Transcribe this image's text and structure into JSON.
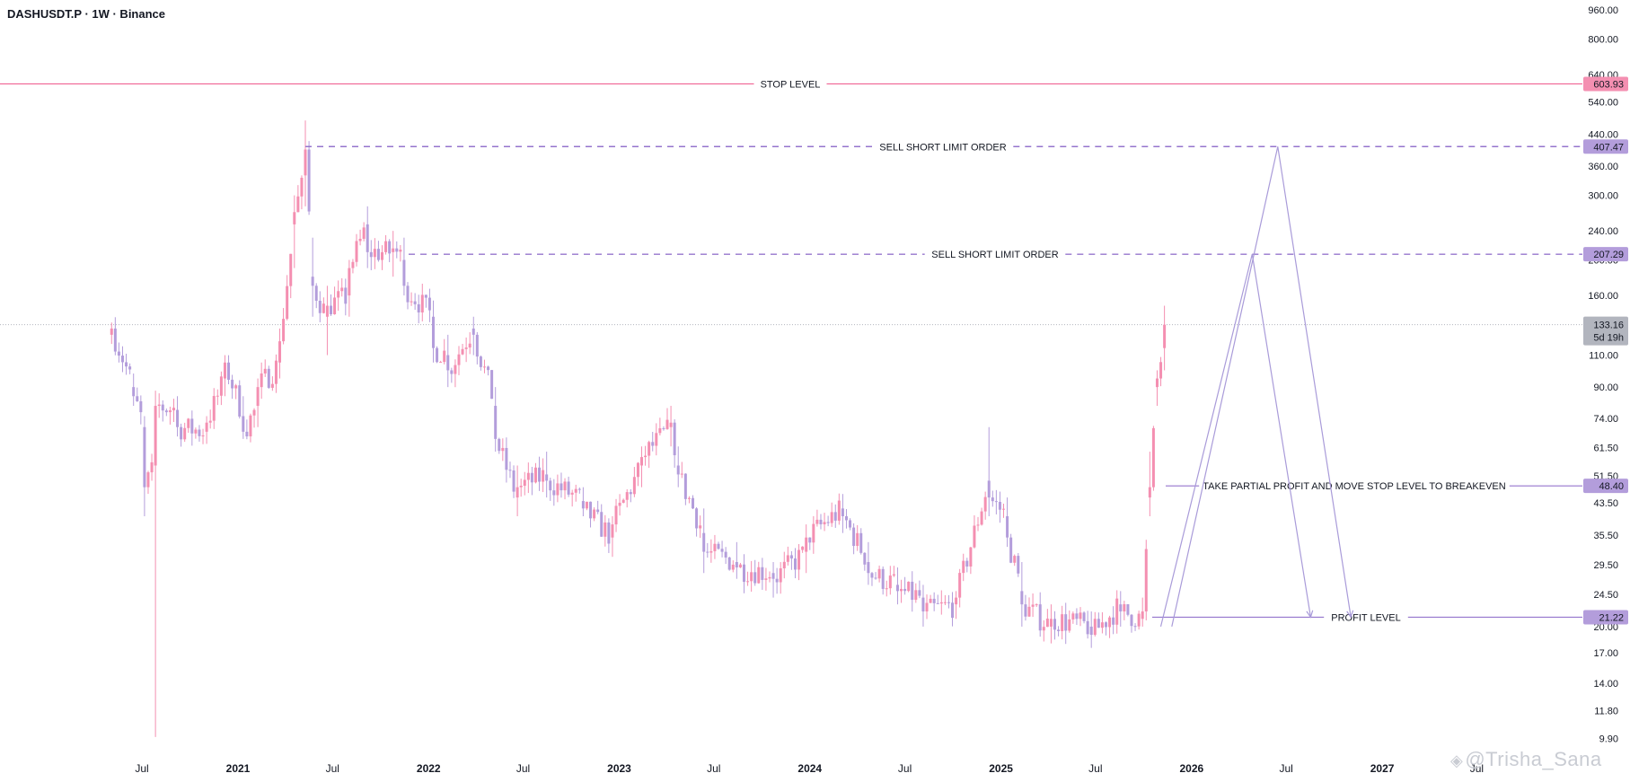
{
  "header": {
    "symbol_title": "DASHUSDT.P · 1W · Binance"
  },
  "watermark": {
    "text": "@Trisha_Sana",
    "icon": "binance-square-icon"
  },
  "colors": {
    "bull_candle": "#f48fb1",
    "bear_candle": "#b39ddb",
    "stop_line": "#f06292",
    "stop_badge_bg": "#f48fb1",
    "order_line": "#9575cd",
    "order_badge_bg": "#b39ddb",
    "current_badge_bg": "#b2b5be",
    "axis_text": "#131722",
    "projection": "#a99bd9"
  },
  "chart_data": {
    "type": "candlestick",
    "title": "",
    "scale": "log",
    "x_axis": {
      "tick_labels": [
        "Jul",
        "2021",
        "Jul",
        "2022",
        "Jul",
        "2023",
        "Jul",
        "2024",
        "Jul",
        "2025",
        "Jul",
        "2026",
        "Jul",
        "2027",
        "Jul"
      ],
      "tick_dates": [
        "2020-07-01",
        "2021-01-01",
        "2021-07-01",
        "2022-01-01",
        "2022-07-01",
        "2023-01-01",
        "2023-07-01",
        "2024-01-01",
        "2024-07-01",
        "2025-01-01",
        "2025-07-01",
        "2026-01-01",
        "2026-07-01",
        "2027-01-01",
        "2027-07-01"
      ],
      "year_labels": [
        "2021",
        "2022",
        "2023",
        "2024",
        "2025",
        "2026",
        "2027"
      ]
    },
    "y_axis": {
      "tick_labels": [
        "960.00",
        "800.00",
        "640.00",
        "540.00",
        "440.00",
        "360.00",
        "300.00",
        "240.00",
        "200.00",
        "160.00",
        "110.00",
        "90.00",
        "74.00",
        "61.50",
        "51.50",
        "43.50",
        "35.50",
        "29.50",
        "24.50",
        "20.00",
        "17.00",
        "14.00",
        "11.80",
        "9.90"
      ],
      "tick_values": [
        960,
        800,
        640,
        540,
        440,
        360,
        300,
        240,
        200,
        160,
        110,
        90,
        74,
        61.5,
        51.5,
        43.5,
        35.5,
        29.5,
        24.5,
        20,
        17,
        14,
        11.8,
        9.9
      ],
      "range": [
        9.5,
        1000
      ]
    },
    "price_levels": [
      {
        "label": "STOP LEVEL",
        "value": 603.93,
        "badge": "603.93",
        "style": "solid",
        "kind": "stop"
      },
      {
        "label": "SELL SHORT LIMIT ORDER",
        "value": 407.47,
        "badge": "407.47",
        "style": "dashed",
        "kind": "order"
      },
      {
        "label": "SELL SHORT LIMIT ORDER",
        "value": 207.29,
        "badge": "207.29",
        "style": "dashed",
        "kind": "order"
      },
      {
        "label": "TAKE PARTIAL PROFIT AND MOVE STOP LEVEL TO BREAKEVEN",
        "value": 48.4,
        "badge": "48.40",
        "style": "solid",
        "kind": "order"
      },
      {
        "label": "PROFIT LEVEL",
        "value": 21.22,
        "badge": "21.22",
        "style": "solid",
        "kind": "order"
      }
    ],
    "current_price": {
      "value": 133.16,
      "label": "133.16",
      "countdown": "5d 19h"
    },
    "ohlc_anchors": [
      [
        "2020-05-04",
        125,
        135,
        118,
        130
      ],
      [
        "2020-06-15",
        90,
        98,
        80,
        85
      ],
      [
        "2020-07-06",
        70,
        75,
        40,
        48
      ],
      [
        "2020-07-27",
        55,
        88,
        10,
        80
      ],
      [
        "2020-09-07",
        78,
        85,
        66,
        70
      ],
      [
        "2020-11-02",
        68,
        75,
        63,
        72
      ],
      [
        "2020-12-07",
        95,
        110,
        85,
        105
      ],
      [
        "2021-01-11",
        75,
        85,
        65,
        68
      ],
      [
        "2021-02-08",
        80,
        95,
        70,
        90
      ],
      [
        "2021-03-22",
        105,
        130,
        95,
        120
      ],
      [
        "2021-04-19",
        250,
        300,
        190,
        270
      ],
      [
        "2021-05-10",
        340,
        480,
        280,
        400
      ],
      [
        "2021-05-24",
        180,
        230,
        140,
        170
      ],
      [
        "2021-06-21",
        140,
        170,
        110,
        150
      ],
      [
        "2021-08-02",
        160,
        200,
        140,
        190
      ],
      [
        "2021-09-06",
        250,
        280,
        190,
        210
      ],
      [
        "2021-10-25",
        210,
        240,
        180,
        215
      ],
      [
        "2021-11-15",
        200,
        230,
        160,
        170
      ],
      [
        "2022-01-10",
        140,
        155,
        105,
        115
      ],
      [
        "2022-02-07",
        110,
        125,
        90,
        100
      ],
      [
        "2022-03-28",
        130,
        140,
        110,
        125
      ],
      [
        "2022-05-09",
        80,
        90,
        60,
        65
      ],
      [
        "2022-06-20",
        45,
        55,
        40,
        48
      ],
      [
        "2022-08-15",
        52,
        60,
        45,
        50
      ],
      [
        "2022-10-24",
        44,
        48,
        40,
        42
      ],
      [
        "2022-12-19",
        35,
        40,
        31,
        38
      ],
      [
        "2023-02-13",
        55,
        62,
        48,
        58
      ],
      [
        "2023-04-10",
        70,
        80,
        62,
        72
      ],
      [
        "2023-04-24",
        55,
        62,
        48,
        52
      ],
      [
        "2023-06-12",
        36,
        42,
        28,
        32
      ],
      [
        "2023-08-14",
        30,
        34,
        27,
        29
      ],
      [
        "2023-10-23",
        28,
        30,
        24,
        27
      ],
      [
        "2023-12-25",
        32,
        38,
        28,
        35
      ],
      [
        "2024-03-04",
        42,
        46,
        36,
        40
      ],
      [
        "2024-04-22",
        30,
        34,
        26,
        28
      ],
      [
        "2024-06-17",
        26,
        29,
        23,
        25
      ],
      [
        "2024-08-05",
        24,
        26,
        20,
        22
      ],
      [
        "2024-10-07",
        23,
        25,
        21,
        24
      ],
      [
        "2024-12-09",
        50,
        70,
        40,
        45
      ],
      [
        "2025-01-13",
        40,
        45,
        33,
        35
      ],
      [
        "2025-02-10",
        25,
        30,
        20,
        23
      ],
      [
        "2025-04-07",
        20,
        23,
        18,
        21
      ],
      [
        "2025-06-23",
        20,
        22,
        17.5,
        19
      ],
      [
        "2025-08-18",
        23,
        25,
        20,
        22
      ],
      [
        "2025-09-29",
        21,
        24,
        20,
        22
      ],
      [
        "2025-10-13",
        45,
        60,
        40,
        48
      ],
      [
        "2025-10-27",
        90,
        100,
        80,
        95
      ],
      [
        "2025-11-10",
        115,
        150,
        100,
        133.16
      ]
    ],
    "projection_paths": [
      [
        [
          "2025-11-03",
          20
        ],
        [
          "2026-04-27",
          207.29
        ],
        [
          "2026-08-17",
          21.22
        ]
      ],
      [
        [
          "2025-11-24",
          20
        ],
        [
          "2026-06-15",
          407.47
        ],
        [
          "2026-11-02",
          21.22
        ]
      ]
    ]
  }
}
